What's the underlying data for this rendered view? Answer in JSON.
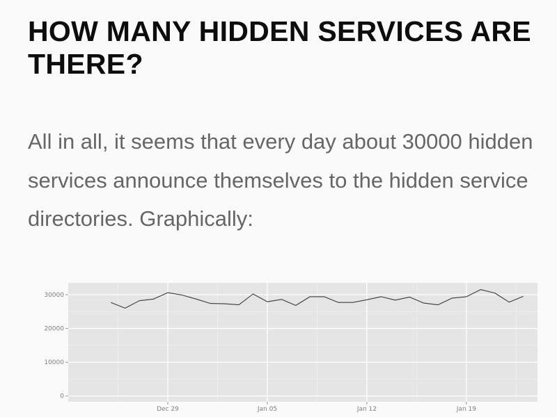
{
  "page": {
    "heading": "HOW MANY HIDDEN SERVICES ARE THERE?",
    "paragraph": "All in all, it seems that every day about 30000 hidden services announce themselves to the hidden service directories. Graphically:"
  },
  "chart_data": {
    "type": "line",
    "title": "",
    "xlabel": "",
    "ylabel": "",
    "grid": true,
    "background": "#e5e5e5",
    "line_color": "#3a3a3a",
    "ylim": [
      -1700,
      33500
    ],
    "xlim": [
      "2013-12-22",
      "2014-01-24"
    ],
    "y_ticks": [
      0,
      10000,
      20000,
      30000
    ],
    "y_tick_labels": [
      "0",
      "10000",
      "20000",
      "30000"
    ],
    "x_ticks": [
      "2013-12-29",
      "2014-01-05",
      "2014-01-12",
      "2014-01-19"
    ],
    "x_tick_labels": [
      "Dec 29",
      "Jan 05",
      "Jan 12",
      "Jan 19"
    ],
    "x": [
      "2013-12-25",
      "2013-12-26",
      "2013-12-27",
      "2013-12-28",
      "2013-12-29",
      "2013-12-30",
      "2013-12-31",
      "2014-01-01",
      "2014-01-02",
      "2014-01-03",
      "2014-01-04",
      "2014-01-05",
      "2014-01-06",
      "2014-01-07",
      "2014-01-08",
      "2014-01-09",
      "2014-01-10",
      "2014-01-11",
      "2014-01-12",
      "2014-01-13",
      "2014-01-14",
      "2014-01-15",
      "2014-01-16",
      "2014-01-17",
      "2014-01-18",
      "2014-01-19",
      "2014-01-20",
      "2014-01-21",
      "2014-01-22",
      "2014-01-23"
    ],
    "series": [
      {
        "values": [
          27700,
          26000,
          28200,
          28700,
          30600,
          29900,
          28700,
          27400,
          27300,
          27000,
          30200,
          27900,
          28600,
          26800,
          29400,
          29400,
          27700,
          27700,
          28500,
          29400,
          28400,
          29300,
          27500,
          27000,
          29000,
          29400,
          31500,
          30500,
          27800,
          29500
        ]
      }
    ]
  }
}
